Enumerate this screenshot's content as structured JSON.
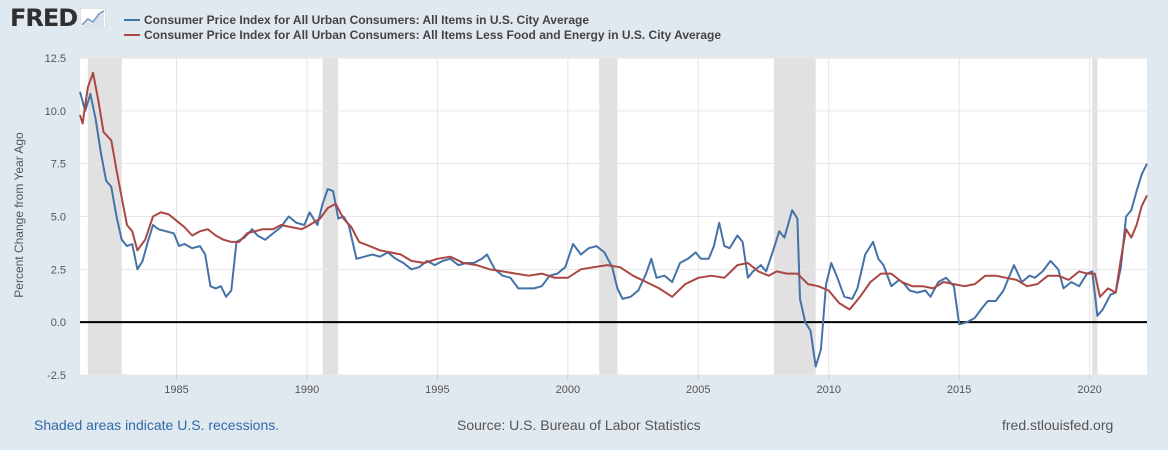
{
  "logo": {
    "text": "FRED",
    "icon": "fred-graph-icon"
  },
  "footer": {
    "recession_note": "Shaded areas indicate U.S. recessions.",
    "source": "Source: U.S. Bureau of Labor Statistics",
    "site": "fred.stlouisfed.org"
  },
  "chart_data": {
    "type": "line",
    "ylabel": "Percent Change from Year Ago",
    "xlim": [
      1981.3,
      2022.2
    ],
    "ylim": [
      -2.5,
      12.5
    ],
    "yticks": [
      -2.5,
      0.0,
      2.5,
      5.0,
      7.5,
      10.0,
      12.5
    ],
    "ytick_labels": [
      "-2.5",
      "0.0",
      "2.5",
      "5.0",
      "7.5",
      "10.0",
      "12.5"
    ],
    "xticks": [
      1985,
      1990,
      1995,
      2000,
      2005,
      2010,
      2015,
      2020
    ],
    "xtick_labels": [
      "1985",
      "1990",
      "1995",
      "2000",
      "2005",
      "2010",
      "2015",
      "2020"
    ],
    "grid": true,
    "legend_position": "top",
    "recessions": [
      [
        1981.6,
        1982.9
      ],
      [
        1990.6,
        1991.2
      ],
      [
        2001.2,
        2001.9
      ],
      [
        2007.9,
        2009.5
      ],
      [
        2020.1,
        2020.3
      ]
    ],
    "series": [
      {
        "name": "Consumer Price Index for All Urban Consumers: All Items in U.S. City Average",
        "color": "#4572a7",
        "points": [
          [
            1981.3,
            10.9
          ],
          [
            1981.5,
            10.0
          ],
          [
            1981.7,
            10.8
          ],
          [
            1981.9,
            9.6
          ],
          [
            1982.1,
            8.0
          ],
          [
            1982.3,
            6.7
          ],
          [
            1982.5,
            6.4
          ],
          [
            1982.7,
            5.0
          ],
          [
            1982.9,
            3.9
          ],
          [
            1983.1,
            3.6
          ],
          [
            1983.3,
            3.7
          ],
          [
            1983.5,
            2.5
          ],
          [
            1983.7,
            2.9
          ],
          [
            1983.9,
            3.8
          ],
          [
            1984.1,
            4.6
          ],
          [
            1984.3,
            4.4
          ],
          [
            1984.6,
            4.3
          ],
          [
            1984.9,
            4.2
          ],
          [
            1985.1,
            3.6
          ],
          [
            1985.3,
            3.7
          ],
          [
            1985.6,
            3.5
          ],
          [
            1985.9,
            3.6
          ],
          [
            1986.1,
            3.2
          ],
          [
            1986.3,
            1.7
          ],
          [
            1986.5,
            1.6
          ],
          [
            1986.7,
            1.7
          ],
          [
            1986.9,
            1.2
          ],
          [
            1987.1,
            1.5
          ],
          [
            1987.3,
            3.8
          ],
          [
            1987.6,
            4.0
          ],
          [
            1987.9,
            4.4
          ],
          [
            1988.1,
            4.1
          ],
          [
            1988.4,
            3.9
          ],
          [
            1988.7,
            4.2
          ],
          [
            1989.0,
            4.5
          ],
          [
            1989.3,
            5.0
          ],
          [
            1989.6,
            4.7
          ],
          [
            1989.9,
            4.6
          ],
          [
            1990.1,
            5.2
          ],
          [
            1990.4,
            4.6
          ],
          [
            1990.6,
            5.6
          ],
          [
            1990.8,
            6.3
          ],
          [
            1991.0,
            6.2
          ],
          [
            1991.2,
            4.9
          ],
          [
            1991.4,
            5.0
          ],
          [
            1991.6,
            4.6
          ],
          [
            1991.9,
            3.0
          ],
          [
            1992.2,
            3.1
          ],
          [
            1992.5,
            3.2
          ],
          [
            1992.8,
            3.1
          ],
          [
            1993.1,
            3.3
          ],
          [
            1993.4,
            3.0
          ],
          [
            1993.7,
            2.8
          ],
          [
            1994.0,
            2.5
          ],
          [
            1994.3,
            2.6
          ],
          [
            1994.6,
            2.9
          ],
          [
            1994.9,
            2.7
          ],
          [
            1995.2,
            2.9
          ],
          [
            1995.5,
            3.0
          ],
          [
            1995.8,
            2.7
          ],
          [
            1996.1,
            2.8
          ],
          [
            1996.4,
            2.8
          ],
          [
            1996.7,
            3.0
          ],
          [
            1996.9,
            3.2
          ],
          [
            1997.2,
            2.5
          ],
          [
            1997.5,
            2.2
          ],
          [
            1997.8,
            2.1
          ],
          [
            1998.1,
            1.6
          ],
          [
            1998.4,
            1.6
          ],
          [
            1998.7,
            1.6
          ],
          [
            1999.0,
            1.7
          ],
          [
            1999.3,
            2.2
          ],
          [
            1999.6,
            2.3
          ],
          [
            1999.9,
            2.6
          ],
          [
            2000.2,
            3.7
          ],
          [
            2000.5,
            3.2
          ],
          [
            2000.8,
            3.5
          ],
          [
            2001.1,
            3.6
          ],
          [
            2001.4,
            3.3
          ],
          [
            2001.7,
            2.6
          ],
          [
            2001.9,
            1.6
          ],
          [
            2002.1,
            1.1
          ],
          [
            2002.4,
            1.2
          ],
          [
            2002.7,
            1.5
          ],
          [
            2003.0,
            2.3
          ],
          [
            2003.2,
            3.0
          ],
          [
            2003.4,
            2.1
          ],
          [
            2003.7,
            2.2
          ],
          [
            2004.0,
            1.9
          ],
          [
            2004.3,
            2.8
          ],
          [
            2004.6,
            3.0
          ],
          [
            2004.9,
            3.3
          ],
          [
            2005.1,
            3.0
          ],
          [
            2005.4,
            3.0
          ],
          [
            2005.6,
            3.6
          ],
          [
            2005.8,
            4.7
          ],
          [
            2006.0,
            3.6
          ],
          [
            2006.2,
            3.5
          ],
          [
            2006.5,
            4.1
          ],
          [
            2006.7,
            3.8
          ],
          [
            2006.9,
            2.1
          ],
          [
            2007.1,
            2.4
          ],
          [
            2007.4,
            2.7
          ],
          [
            2007.6,
            2.4
          ],
          [
            2007.9,
            3.5
          ],
          [
            2008.1,
            4.3
          ],
          [
            2008.3,
            4.0
          ],
          [
            2008.6,
            5.3
          ],
          [
            2008.8,
            4.9
          ],
          [
            2008.9,
            1.1
          ],
          [
            2009.1,
            0.0
          ],
          [
            2009.3,
            -0.4
          ],
          [
            2009.5,
            -2.1
          ],
          [
            2009.7,
            -1.3
          ],
          [
            2009.9,
            1.8
          ],
          [
            2010.1,
            2.8
          ],
          [
            2010.3,
            2.2
          ],
          [
            2010.6,
            1.2
          ],
          [
            2010.9,
            1.1
          ],
          [
            2011.1,
            1.6
          ],
          [
            2011.4,
            3.2
          ],
          [
            2011.7,
            3.8
          ],
          [
            2011.9,
            3.0
          ],
          [
            2012.1,
            2.7
          ],
          [
            2012.4,
            1.7
          ],
          [
            2012.7,
            2.0
          ],
          [
            2012.9,
            1.8
          ],
          [
            2013.1,
            1.5
          ],
          [
            2013.4,
            1.4
          ],
          [
            2013.7,
            1.5
          ],
          [
            2013.9,
            1.2
          ],
          [
            2014.2,
            1.9
          ],
          [
            2014.5,
            2.1
          ],
          [
            2014.8,
            1.7
          ],
          [
            2015.0,
            -0.1
          ],
          [
            2015.3,
            0.0
          ],
          [
            2015.6,
            0.2
          ],
          [
            2015.9,
            0.7
          ],
          [
            2016.1,
            1.0
          ],
          [
            2016.4,
            1.0
          ],
          [
            2016.7,
            1.5
          ],
          [
            2016.9,
            2.1
          ],
          [
            2017.1,
            2.7
          ],
          [
            2017.4,
            1.9
          ],
          [
            2017.7,
            2.2
          ],
          [
            2017.9,
            2.1
          ],
          [
            2018.2,
            2.4
          ],
          [
            2018.5,
            2.9
          ],
          [
            2018.8,
            2.5
          ],
          [
            2019.0,
            1.6
          ],
          [
            2019.3,
            1.9
          ],
          [
            2019.6,
            1.7
          ],
          [
            2019.9,
            2.3
          ],
          [
            2020.1,
            2.4
          ],
          [
            2020.3,
            0.3
          ],
          [
            2020.5,
            0.6
          ],
          [
            2020.8,
            1.3
          ],
          [
            2021.0,
            1.4
          ],
          [
            2021.2,
            2.6
          ],
          [
            2021.4,
            5.0
          ],
          [
            2021.6,
            5.3
          ],
          [
            2021.8,
            6.2
          ],
          [
            2022.0,
            7.0
          ],
          [
            2022.2,
            7.5
          ]
        ]
      },
      {
        "name": "Consumer Price Index for All Urban Consumers: All Items Less Food and Energy in U.S. City Average",
        "color": "#aa4643",
        "points": [
          [
            1981.3,
            9.8
          ],
          [
            1981.4,
            9.4
          ],
          [
            1981.6,
            11.1
          ],
          [
            1981.8,
            11.8
          ],
          [
            1982.0,
            10.5
          ],
          [
            1982.2,
            9.0
          ],
          [
            1982.5,
            8.6
          ],
          [
            1982.7,
            7.2
          ],
          [
            1982.9,
            5.9
          ],
          [
            1983.1,
            4.6
          ],
          [
            1983.3,
            4.3
          ],
          [
            1983.5,
            3.4
          ],
          [
            1983.8,
            3.9
          ],
          [
            1984.1,
            5.0
          ],
          [
            1984.4,
            5.2
          ],
          [
            1984.7,
            5.1
          ],
          [
            1985.0,
            4.8
          ],
          [
            1985.3,
            4.5
          ],
          [
            1985.6,
            4.1
          ],
          [
            1985.9,
            4.3
          ],
          [
            1986.2,
            4.4
          ],
          [
            1986.5,
            4.1
          ],
          [
            1986.8,
            3.9
          ],
          [
            1987.1,
            3.8
          ],
          [
            1987.4,
            3.8
          ],
          [
            1987.7,
            4.2
          ],
          [
            1988.0,
            4.3
          ],
          [
            1988.3,
            4.4
          ],
          [
            1988.7,
            4.4
          ],
          [
            1989.0,
            4.6
          ],
          [
            1989.4,
            4.5
          ],
          [
            1989.8,
            4.4
          ],
          [
            1990.1,
            4.6
          ],
          [
            1990.5,
            4.9
          ],
          [
            1990.8,
            5.4
          ],
          [
            1991.1,
            5.6
          ],
          [
            1991.4,
            4.9
          ],
          [
            1991.7,
            4.5
          ],
          [
            1992.0,
            3.8
          ],
          [
            1992.4,
            3.6
          ],
          [
            1992.8,
            3.4
          ],
          [
            1993.2,
            3.3
          ],
          [
            1993.6,
            3.2
          ],
          [
            1994.0,
            2.9
          ],
          [
            1994.5,
            2.8
          ],
          [
            1995.0,
            3.0
          ],
          [
            1995.5,
            3.1
          ],
          [
            1996.0,
            2.8
          ],
          [
            1996.5,
            2.7
          ],
          [
            1997.0,
            2.5
          ],
          [
            1997.5,
            2.4
          ],
          [
            1998.0,
            2.3
          ],
          [
            1998.5,
            2.2
          ],
          [
            1999.0,
            2.3
          ],
          [
            1999.5,
            2.1
          ],
          [
            2000.0,
            2.1
          ],
          [
            2000.5,
            2.5
          ],
          [
            2001.0,
            2.6
          ],
          [
            2001.5,
            2.7
          ],
          [
            2002.0,
            2.6
          ],
          [
            2002.5,
            2.2
          ],
          [
            2003.0,
            1.9
          ],
          [
            2003.5,
            1.6
          ],
          [
            2004.0,
            1.2
          ],
          [
            2004.5,
            1.8
          ],
          [
            2005.0,
            2.1
          ],
          [
            2005.5,
            2.2
          ],
          [
            2006.0,
            2.1
          ],
          [
            2006.5,
            2.7
          ],
          [
            2006.9,
            2.8
          ],
          [
            2007.3,
            2.4
          ],
          [
            2007.7,
            2.2
          ],
          [
            2008.0,
            2.4
          ],
          [
            2008.4,
            2.3
          ],
          [
            2008.8,
            2.3
          ],
          [
            2009.2,
            1.8
          ],
          [
            2009.6,
            1.7
          ],
          [
            2010.0,
            1.5
          ],
          [
            2010.4,
            0.9
          ],
          [
            2010.8,
            0.6
          ],
          [
            2011.2,
            1.2
          ],
          [
            2011.6,
            1.9
          ],
          [
            2012.0,
            2.3
          ],
          [
            2012.4,
            2.3
          ],
          [
            2012.8,
            1.9
          ],
          [
            2013.2,
            1.7
          ],
          [
            2013.6,
            1.7
          ],
          [
            2014.0,
            1.6
          ],
          [
            2014.4,
            1.9
          ],
          [
            2014.8,
            1.8
          ],
          [
            2015.2,
            1.7
          ],
          [
            2015.6,
            1.8
          ],
          [
            2016.0,
            2.2
          ],
          [
            2016.4,
            2.2
          ],
          [
            2016.8,
            2.1
          ],
          [
            2017.2,
            2.0
          ],
          [
            2017.6,
            1.7
          ],
          [
            2018.0,
            1.8
          ],
          [
            2018.4,
            2.2
          ],
          [
            2018.8,
            2.2
          ],
          [
            2019.2,
            2.0
          ],
          [
            2019.6,
            2.4
          ],
          [
            2019.9,
            2.3
          ],
          [
            2020.2,
            2.3
          ],
          [
            2020.4,
            1.2
          ],
          [
            2020.7,
            1.6
          ],
          [
            2021.0,
            1.4
          ],
          [
            2021.2,
            3.0
          ],
          [
            2021.4,
            4.4
          ],
          [
            2021.6,
            4.0
          ],
          [
            2021.8,
            4.6
          ],
          [
            2022.0,
            5.5
          ],
          [
            2022.2,
            6.0
          ]
        ]
      }
    ]
  }
}
